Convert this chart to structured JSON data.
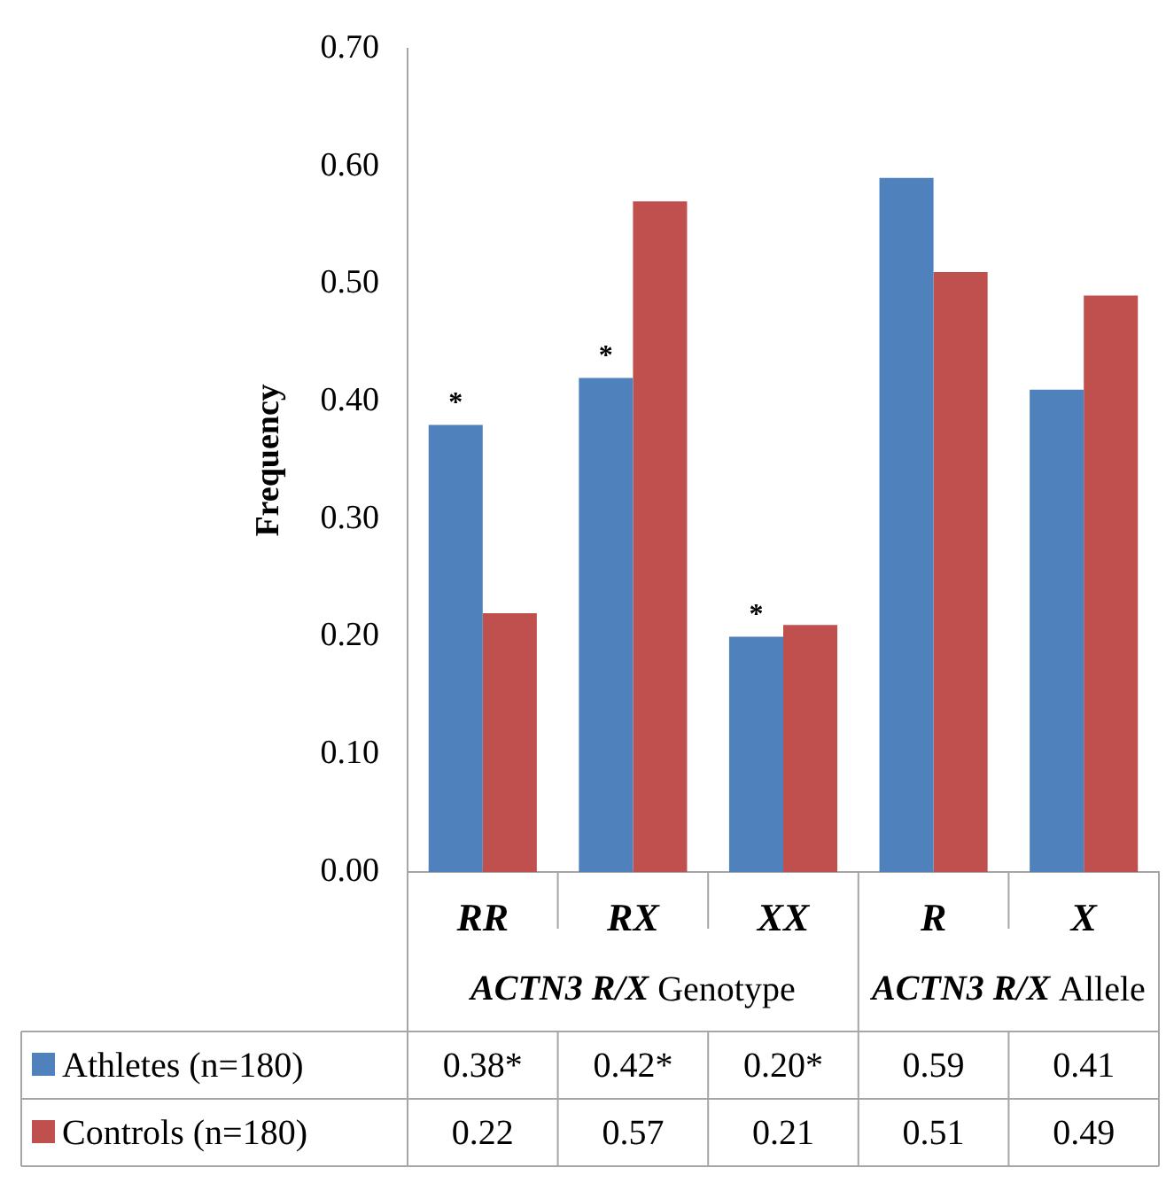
{
  "chart_data": {
    "type": "bar",
    "ylabel": "Frequency",
    "categories": [
      "RR",
      "RX",
      "XX",
      "R",
      "X"
    ],
    "series": [
      {
        "name": "Athletes (n=180)",
        "color": "#4f81bd",
        "values": [
          0.38,
          0.42,
          0.2,
          0.59,
          0.41
        ],
        "value_labels": [
          "0.38*",
          "0.42*",
          "0.20*",
          "0.59",
          "0.41"
        ]
      },
      {
        "name": "Controls (n=180)",
        "color": "#c0504d",
        "values": [
          0.22,
          0.57,
          0.21,
          0.51,
          0.49
        ],
        "value_labels": [
          "0.22",
          "0.57",
          "0.21",
          "0.51",
          "0.49"
        ]
      }
    ],
    "ylim": [
      0,
      0.7
    ],
    "yticks": [
      {
        "value": 0,
        "label": "0.00"
      },
      {
        "value": 0.1,
        "label": "0.10"
      },
      {
        "value": 0.2,
        "label": "0.20"
      },
      {
        "value": 0.3,
        "label": "0.30"
      },
      {
        "value": 0.4,
        "label": "0.40"
      },
      {
        "value": 0.5,
        "label": "0.50"
      },
      {
        "value": 0.6,
        "label": "0.60"
      },
      {
        "value": 0.7,
        "label": "0.70"
      }
    ],
    "annotations": [
      {
        "text": "*",
        "x": "RR",
        "y": 0.38
      },
      {
        "text": "*",
        "x": "RX",
        "y": 0.42
      },
      {
        "text": "*",
        "x": "XX",
        "y": 0.2
      },
      "ACTN3 R/X Genotype",
      "ACTN3 R/X Allele"
    ],
    "legend": "bottom"
  }
}
